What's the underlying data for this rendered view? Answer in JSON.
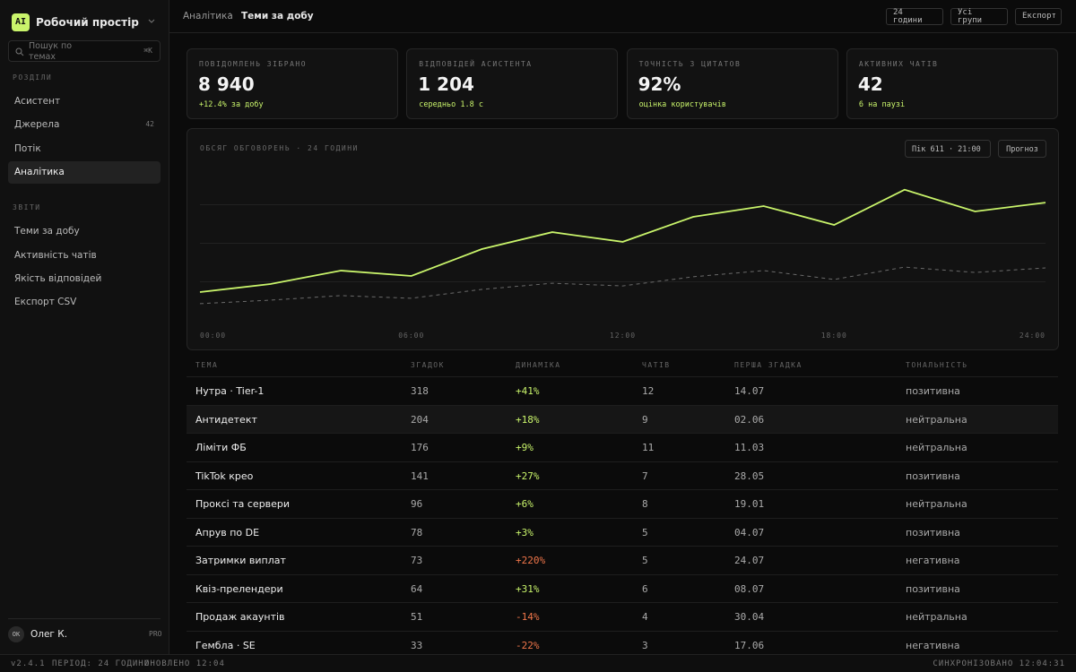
{
  "sidebar": {
    "logo": "AI",
    "workspace": "Робочий простір",
    "search": "Пошук по темах",
    "shortcut": "⌘K",
    "sections": [
      {
        "title": "РОЗДІЛИ",
        "items": [
          {
            "label": "Асистент"
          },
          {
            "label": "Джерела",
            "badge": "42"
          },
          {
            "label": "Потік"
          },
          {
            "label": "Аналітика",
            "active": true
          }
        ]
      },
      {
        "title": "ЗВІТИ",
        "items": [
          {
            "label": "Теми за добу"
          },
          {
            "label": "Активність чатів"
          },
          {
            "label": "Якість відповідей"
          },
          {
            "label": "Експорт CSV"
          }
        ]
      }
    ],
    "user": {
      "initials": "OK",
      "name": "Олег К.",
      "plan": "PRO"
    }
  },
  "topbar": {
    "breadcrumb": [
      "Аналітика",
      "Теми за добу"
    ],
    "buttons": [
      "24 години",
      "Усі групи",
      "Експорт"
    ]
  },
  "stats": [
    {
      "label": "ПОВІДОМЛЕНЬ ЗІБРАНО",
      "value": "8 940",
      "note": "+12.4% за добу"
    },
    {
      "label": "ВІДПОВІДЕЙ АСИСТЕНТА",
      "value": "1 204",
      "note": "середньо 1.8 с"
    },
    {
      "label": "ТОЧНІСТЬ З ЦИТАТОВ",
      "value": "92%",
      "note": "оцінка користувачів"
    },
    {
      "label": "АКТИВНИХ ЧАТІВ",
      "value": "42",
      "note": "6 на паузі"
    }
  ],
  "chart_data": {
    "type": "line",
    "title": "ОБСЯГ ОБГОВОРЕНЬ · 24 ГОДИНИ",
    "peak": "Пік 611 · 21:00",
    "button": "Прогноз",
    "x_labels": [
      "00:00",
      "06:00",
      "12:00",
      "18:00",
      "24:00"
    ],
    "ylim": [
      100,
      700
    ],
    "series": [
      {
        "color": "#c9f46b",
        "dashed": false,
        "values": [
          230,
          260,
          310,
          290,
          390,
          453,
          417,
          510,
          550,
          480,
          611,
          530,
          563
        ]
      },
      {
        "color": "#6a6a6a",
        "dashed": true,
        "values": [
          187,
          200,
          217,
          207,
          240,
          263,
          253,
          287,
          310,
          277,
          323,
          303,
          320
        ]
      }
    ]
  },
  "table": {
    "headers": [
      "ТЕМА",
      "ЗГАДОК",
      "ДИНАМІКА",
      "ЧАТІВ",
      "ПЕРША ЗГАДКА",
      "ТОНАЛЬНІСТЬ"
    ],
    "highlighted_row": 1,
    "rows": [
      [
        "Нутра · Tier-1",
        "318",
        "+41%",
        "12",
        "14.07",
        "позитивна"
      ],
      [
        "Антидетект",
        "204",
        "+18%",
        "9",
        "02.06",
        "нейтральна"
      ],
      [
        "Ліміти ФБ",
        "176",
        "+9%",
        "11",
        "11.03",
        "нейтральна"
      ],
      [
        "TikTok крео",
        "141",
        "+27%",
        "7",
        "28.05",
        "позитивна"
      ],
      [
        "Проксі та сервери",
        "96",
        "+6%",
        "8",
        "19.01",
        "нейтральна"
      ],
      [
        "Апрув по DE",
        "78",
        "+3%",
        "5",
        "04.07",
        "позитивна"
      ],
      [
        "Затримки виплат",
        "73",
        "+220%",
        "5",
        "24.07",
        "негативна"
      ],
      [
        "Квіз-прелендери",
        "64",
        "+31%",
        "6",
        "08.07",
        "позитивна"
      ],
      [
        "Продаж акаунтів",
        "51",
        "-14%",
        "4",
        "30.04",
        "нейтральна"
      ],
      [
        "Гембла · SE",
        "33",
        "-22%",
        "3",
        "17.06",
        "негативна"
      ]
    ],
    "change_colors": [
      "#c9f46b",
      "#c9f46b",
      "#c9f46b",
      "#c9f46b",
      "#c9f46b",
      "#c9f46b",
      "#f0764a",
      "#c9f46b",
      "#f0764a",
      "#f0764a"
    ]
  },
  "footer": {
    "left": [
      "v2.4.1",
      "ПЕРІОД: 24 ГОДИНИ",
      "ОНОВЛЕНО 12:04"
    ],
    "right": "СИНХРОНІЗОВАНО 12:04:31"
  }
}
